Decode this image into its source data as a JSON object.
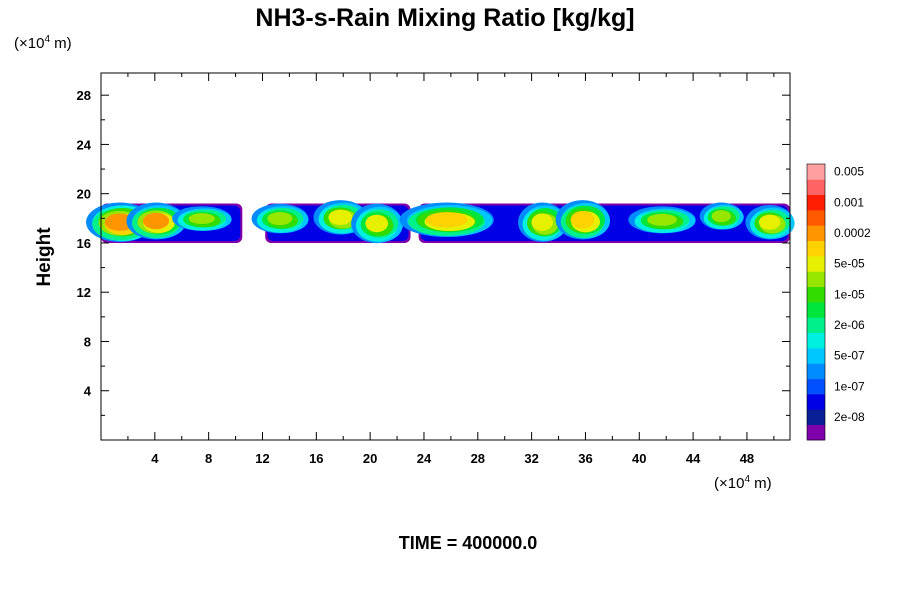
{
  "chart_data": {
    "type": "heatmap",
    "title": "NH3-s-Rain Mixing Ratio [kg/kg]",
    "xlabel": "",
    "ylabel": "Height",
    "x_unit": {
      "prefix": "(×10",
      "exp": "4",
      "suffix": " m)"
    },
    "y_unit": {
      "prefix": "(×10",
      "exp": "4",
      "suffix": " m)"
    },
    "xlim": [
      0,
      51.2
    ],
    "ylim": [
      0,
      29.8
    ],
    "x_ticks": [
      4,
      8,
      12,
      16,
      20,
      24,
      28,
      32,
      36,
      40,
      44,
      48
    ],
    "y_ticks": [
      4,
      8,
      12,
      16,
      20,
      24,
      28
    ],
    "time_label": "TIME = 400000.0",
    "colorbar": {
      "colors": [
        "#7f00aa",
        "#0a1e96",
        "#0000e6",
        "#0050ff",
        "#008cff",
        "#00c8ff",
        "#00f0e0",
        "#00f08c",
        "#00e63c",
        "#32dc00",
        "#96e600",
        "#e6f000",
        "#ffd200",
        "#ff9600",
        "#ff5a00",
        "#ff1e00",
        "#ff6464",
        "#ffa0a0"
      ],
      "labels": [
        "2e-08",
        "1e-07",
        "5e-07",
        "2e-06",
        "1e-05",
        "5e-05",
        "0.0002",
        "0.001",
        "0.005"
      ]
    },
    "cloud_layer": {
      "y_base": 16.0,
      "y_top": 19.2
    },
    "cells": [
      {
        "x": 1.5,
        "y": 17.6,
        "w": 2.5,
        "h": 1.6,
        "v": 0.9
      },
      {
        "x": 4.2,
        "y": 17.7,
        "w": 2.2,
        "h": 1.5,
        "v": 0.85
      },
      {
        "x": 7.6,
        "y": 17.9,
        "w": 2.2,
        "h": 1.0,
        "v": 0.6
      },
      {
        "x": 13.4,
        "y": 17.9,
        "w": 2.1,
        "h": 1.2,
        "v": 0.65
      },
      {
        "x": 17.9,
        "y": 18.0,
        "w": 2.0,
        "h": 1.4,
        "v": 0.7
      },
      {
        "x": 20.6,
        "y": 17.5,
        "w": 1.9,
        "h": 1.6,
        "v": 0.68
      },
      {
        "x": 25.8,
        "y": 17.8,
        "w": 3.5,
        "h": 1.4,
        "v": 0.78
      },
      {
        "x": 32.9,
        "y": 17.6,
        "w": 1.8,
        "h": 1.6,
        "v": 0.75
      },
      {
        "x": 35.9,
        "y": 17.8,
        "w": 2.0,
        "h": 1.6,
        "v": 0.78
      },
      {
        "x": 41.8,
        "y": 17.8,
        "w": 2.5,
        "h": 1.1,
        "v": 0.6
      },
      {
        "x": 46.2,
        "y": 18.1,
        "w": 1.6,
        "h": 1.1,
        "v": 0.62
      },
      {
        "x": 49.8,
        "y": 17.6,
        "w": 1.8,
        "h": 1.4,
        "v": 0.72
      }
    ]
  }
}
